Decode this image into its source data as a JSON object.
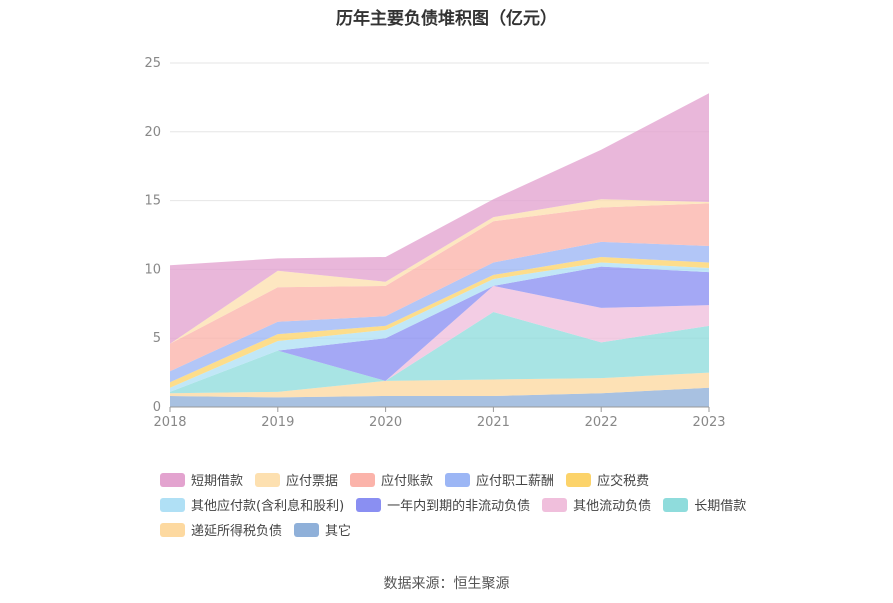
{
  "chart_data": {
    "type": "area",
    "stacked": true,
    "title": "历年主要负债堆积图（亿元）",
    "source": "数据来源：恒生聚源",
    "categories": [
      "2018",
      "2019",
      "2020",
      "2021",
      "2022",
      "2023"
    ],
    "ylim": [
      0,
      25
    ],
    "yticks": [
      "0",
      "5",
      "10",
      "15",
      "20",
      "25"
    ],
    "grid": true,
    "legend_position": "bottom",
    "series": [
      {
        "name": "其它",
        "color": "#8fb0d9",
        "values": [
          0.8,
          0.7,
          0.8,
          0.8,
          1.0,
          1.4
        ]
      },
      {
        "name": "递延所得税负债",
        "color": "#fdd9a0",
        "values": [
          0.2,
          0.4,
          1.1,
          1.2,
          1.1,
          1.1
        ]
      },
      {
        "name": "长期借款",
        "color": "#8fdcdc",
        "values": [
          0.1,
          3.0,
          0.0,
          4.9,
          2.6,
          3.4
        ]
      },
      {
        "name": "其他流动负债",
        "color": "#f0bfdc",
        "values": [
          0.0,
          0.0,
          0.0,
          1.9,
          2.5,
          1.5
        ]
      },
      {
        "name": "一年内到期的非流动负债",
        "color": "#8a8ff2",
        "values": [
          0.0,
          0.0,
          3.1,
          0.0,
          3.0,
          2.4
        ]
      },
      {
        "name": "其他应付款(含利息和股利)",
        "color": "#b0e0f5",
        "values": [
          0.3,
          0.7,
          0.6,
          0.5,
          0.3,
          0.3
        ]
      },
      {
        "name": "应交税费",
        "color": "#fcd36a",
        "values": [
          0.4,
          0.5,
          0.3,
          0.3,
          0.4,
          0.4
        ]
      },
      {
        "name": "应付职工薪酬",
        "color": "#9cb6f5",
        "values": [
          0.8,
          0.9,
          0.7,
          0.9,
          1.1,
          1.2
        ]
      },
      {
        "name": "应付账款",
        "color": "#fbb3aa",
        "values": [
          2.0,
          2.5,
          2.2,
          3.0,
          2.5,
          3.1
        ]
      },
      {
        "name": "应付票据",
        "color": "#fde0b0",
        "values": [
          0.0,
          1.2,
          0.3,
          0.3,
          0.6,
          0.1
        ]
      },
      {
        "name": "短期借款",
        "color": "#e3a3cf",
        "values": [
          5.7,
          0.9,
          1.8,
          1.3,
          3.6,
          7.9
        ]
      }
    ],
    "legend_order": [
      "短期借款",
      "应付票据",
      "应付账款",
      "应付职工薪酬",
      "应交税费",
      "其他应付款(含利息和股利)",
      "一年内到期的非流动负债",
      "其他流动负债",
      "长期借款",
      "递延所得税负债",
      "其它"
    ]
  }
}
